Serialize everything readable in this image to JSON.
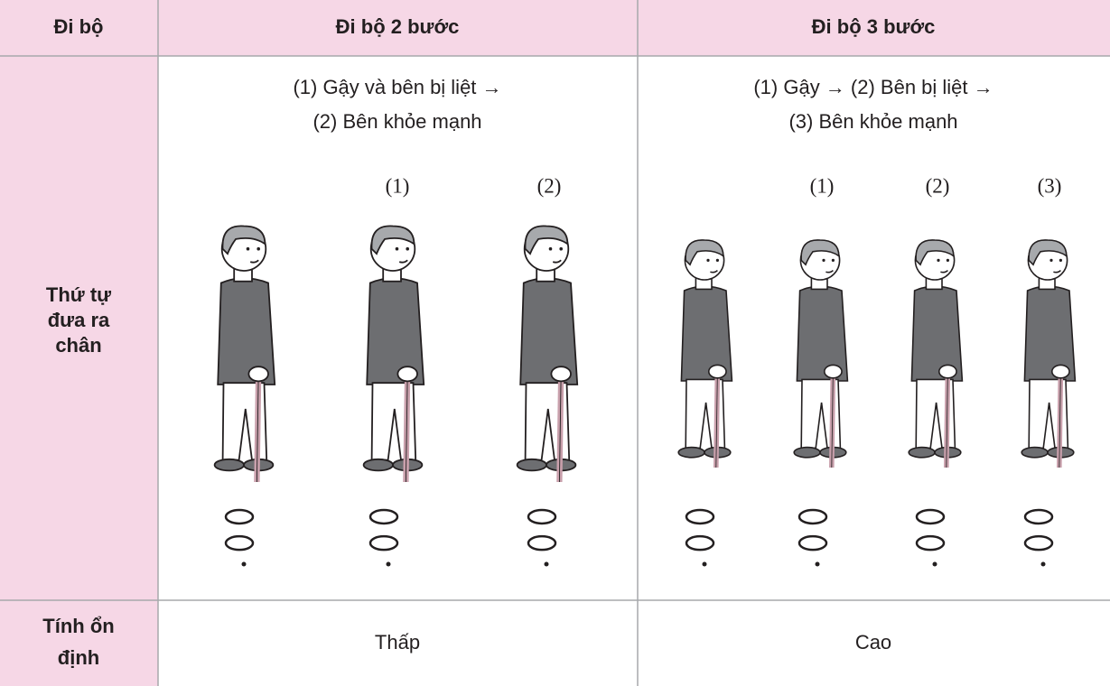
{
  "table": {
    "header": [
      "Đi bộ",
      "Đi bộ 2 bước",
      "Đi bộ 3 bước"
    ],
    "rows": [
      {
        "label_lines": [
          "Thứ tự",
          "đưa ra",
          "chân"
        ],
        "cells": [
          {
            "sequence_lines": [
              "(1) Gậy và bên bị liệt →",
              "(2) Bên khỏe mạnh"
            ],
            "figure_labels": [
              "(1)",
              "(2)"
            ]
          },
          {
            "sequence_lines": [
              "(1) Gậy → (2) Bên bị liệt →",
              "(3) Bên khỏe mạnh"
            ],
            "figure_labels": [
              "(1)",
              "(2)",
              "(3)"
            ]
          }
        ]
      },
      {
        "label_lines": [
          "Tính ổn",
          "định"
        ],
        "cells": [
          "Thấp",
          "Cao"
        ]
      }
    ]
  }
}
